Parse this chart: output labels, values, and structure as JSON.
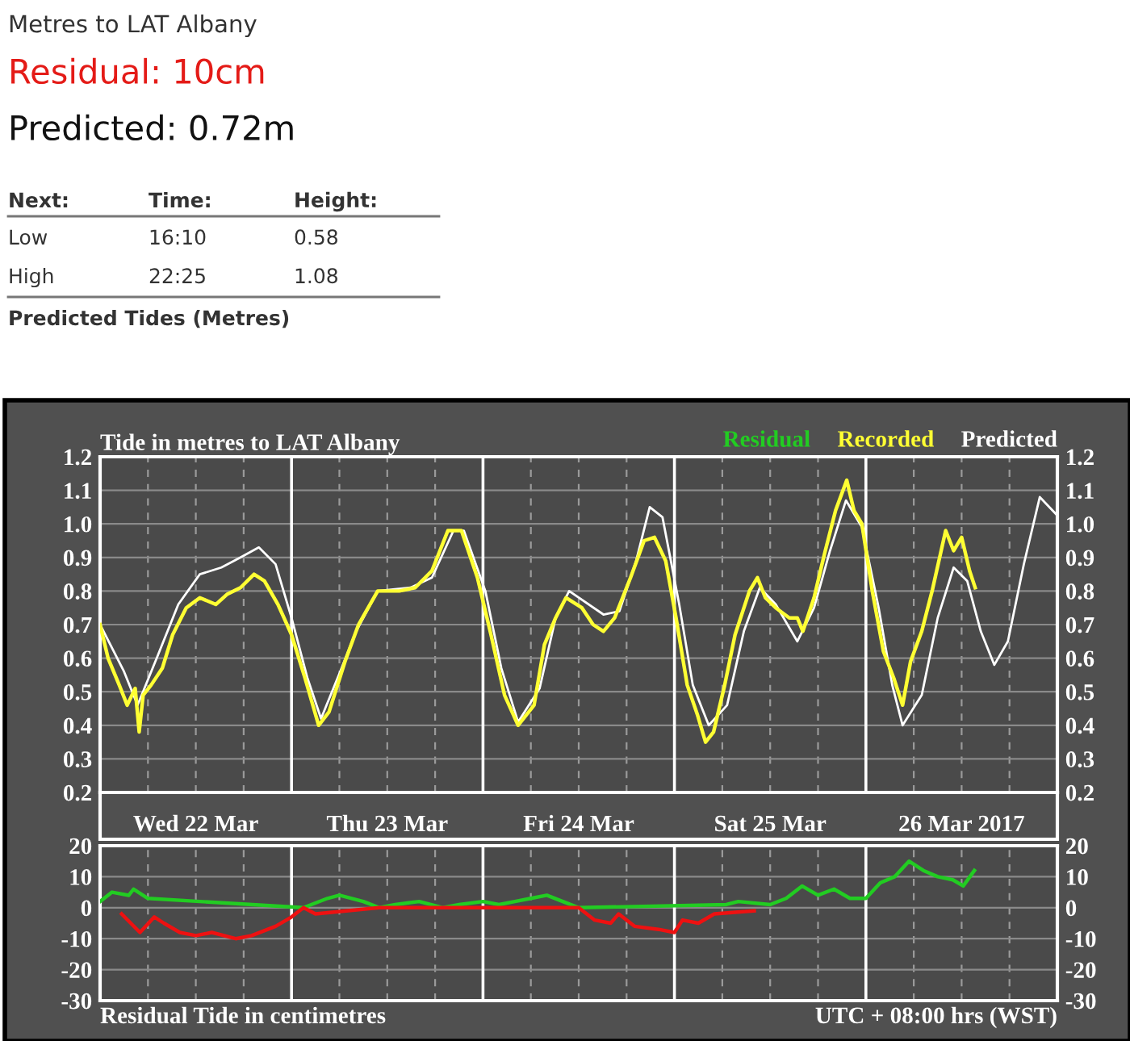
{
  "chart_data": [
    {
      "type": "other",
      "title": "Metres to LAT Albany",
      "annotations": [
        "Residual: 10cm",
        "Predicted: 0.72m",
        "Next:",
        "Time:",
        "Height:",
        "Low",
        "16:10",
        "0.58",
        "High",
        "22:25",
        "1.08",
        "Predicted Tides (Metres)"
      ]
    },
    {
      "type": "line",
      "title": "Tide in metres to LAT Albany",
      "legend": "top right",
      "grid": true,
      "xlim": [
        "2017-03-22T00:00",
        "2017-03-27T00:00"
      ],
      "ylim": [
        0.2,
        1.2
      ],
      "y2lim": [
        0.2,
        1.2
      ],
      "xticks": [
        {
          "value": "2017-03-22T06:00",
          "label": null
        },
        {
          "value": "2017-03-22T12:00",
          "label": "Wed 22 Mar"
        },
        {
          "value": "2017-03-22T18:00",
          "label": null
        },
        {
          "value": "2017-03-23T06:00",
          "label": null
        },
        {
          "value": "2017-03-23T12:00",
          "label": "Thu 23 Mar"
        },
        {
          "value": "2017-03-23T18:00",
          "label": null
        },
        {
          "value": "2017-03-24T06:00",
          "label": null
        },
        {
          "value": "2017-03-24T12:00",
          "label": "Fri 24 Mar"
        },
        {
          "value": "2017-03-24T18:00",
          "label": null
        },
        {
          "value": "2017-03-25T06:00",
          "label": null
        },
        {
          "value": "2017-03-25T12:00",
          "label": "Sat 25 Mar"
        },
        {
          "value": "2017-03-25T18:00",
          "label": null
        },
        {
          "value": "2017-03-26T06:00",
          "label": null
        },
        {
          "value": "2017-03-26T12:00",
          "label": "26 Mar 2017"
        },
        {
          "value": "2017-03-26T18:00",
          "label": null
        }
      ],
      "yticks": [
        {
          "value": 0.2,
          "label": "0.2"
        },
        {
          "value": 0.3,
          "label": "0.3"
        },
        {
          "value": 0.4,
          "label": "0.4"
        },
        {
          "value": 0.5,
          "label": "0.5"
        },
        {
          "value": 0.6,
          "label": "0.6"
        },
        {
          "value": 0.7,
          "label": "0.7"
        },
        {
          "value": 0.8,
          "label": "0.8"
        },
        {
          "value": 0.9,
          "label": "0.9"
        },
        {
          "value": 1.0,
          "label": "1.0"
        },
        {
          "value": 1.1,
          "label": "1.1"
        },
        {
          "value": 1.2,
          "label": "1.2"
        }
      ],
      "y2ticks": [
        {
          "value": 0.2,
          "label": "0.2"
        },
        {
          "value": 0.3,
          "label": "0.3"
        },
        {
          "value": 0.4,
          "label": "0.4"
        },
        {
          "value": 0.5,
          "label": "0.5"
        },
        {
          "value": 0.6,
          "label": "0.6"
        },
        {
          "value": 0.7,
          "label": "0.7"
        },
        {
          "value": 0.8,
          "label": "0.8"
        },
        {
          "value": 0.9,
          "label": "0.9"
        },
        {
          "value": 1.0,
          "label": "1.0"
        },
        {
          "value": 1.1,
          "label": "1.1"
        },
        {
          "value": 1.2,
          "label": "1.2"
        }
      ],
      "ref_lines": [
        {
          "axis": "x",
          "value": "2017-03-23T00:00",
          "color": "#ffffff"
        },
        {
          "axis": "x",
          "value": "2017-03-24T00:00",
          "color": "#ffffff"
        },
        {
          "axis": "x",
          "value": "2017-03-25T00:00",
          "color": "#ffffff"
        },
        {
          "axis": "x",
          "value": "2017-03-26T00:00",
          "color": "#ffffff"
        }
      ],
      "series": [
        {
          "name": "Predicted",
          "color": "#ffffff",
          "x": [
            "2017-03-22T00:00",
            "2017-03-22T03:00",
            "2017-03-22T04:42",
            "2017-03-22T07:06",
            "2017-03-22T09:48",
            "2017-03-22T12:30",
            "2017-03-22T15:12",
            "2017-03-22T17:36",
            "2017-03-22T19:54",
            "2017-03-22T22:00",
            "2017-03-23T00:00",
            "2017-03-23T02:00",
            "2017-03-23T03:42",
            "2017-03-23T06:06",
            "2017-03-23T08:06",
            "2017-03-23T10:48",
            "2017-03-23T14:54",
            "2017-03-23T17:36",
            "2017-03-23T20:18",
            "2017-03-23T21:36",
            "2017-03-24T00:18",
            "2017-03-24T02:18",
            "2017-03-24T04:24",
            "2017-03-24T07:06",
            "2017-03-24T09:06",
            "2017-03-24T10:48",
            "2017-03-24T15:06",
            "2017-03-24T17:06",
            "2017-03-24T19:12",
            "2017-03-24T20:54",
            "2017-03-24T22:30",
            "2017-03-25T00:36",
            "2017-03-25T02:18",
            "2017-03-25T04:18",
            "2017-03-25T06:36",
            "2017-03-25T08:42",
            "2017-03-25T10:42",
            "2017-03-25T12:42",
            "2017-03-25T15:24",
            "2017-03-25T17:30",
            "2017-03-25T19:30",
            "2017-03-25T21:30",
            "2017-03-25T23:30",
            "2017-03-26T01:36",
            "2017-03-26T03:18",
            "2017-03-26T04:36",
            "2017-03-26T07:00",
            "2017-03-26T09:00",
            "2017-03-26T11:00",
            "2017-03-26T12:42",
            "2017-03-26T14:24",
            "2017-03-26T16:06",
            "2017-03-26T17:48",
            "2017-03-26T19:48",
            "2017-03-26T21:48",
            "2017-03-26T23:48"
          ],
          "values": [
            0.7,
            0.56,
            0.46,
            0.6,
            0.76,
            0.85,
            0.87,
            0.9,
            0.93,
            0.88,
            0.72,
            0.54,
            0.42,
            0.56,
            0.68,
            0.8,
            0.81,
            0.84,
            0.98,
            0.98,
            0.8,
            0.57,
            0.41,
            0.51,
            0.72,
            0.8,
            0.73,
            0.74,
            0.89,
            1.05,
            1.02,
            0.76,
            0.52,
            0.4,
            0.46,
            0.68,
            0.81,
            0.76,
            0.65,
            0.75,
            0.92,
            1.07,
            0.99,
            0.75,
            0.52,
            0.4,
            0.49,
            0.72,
            0.87,
            0.83,
            0.68,
            0.58,
            0.65,
            0.88,
            1.08,
            1.03
          ]
        },
        {
          "name": "Recorded",
          "color": "#ffff33",
          "x": [
            "2017-03-22T00:00",
            "2017-03-22T01:00",
            "2017-03-22T02:24",
            "2017-03-22T03:24",
            "2017-03-22T04:24",
            "2017-03-22T04:54",
            "2017-03-22T05:24",
            "2017-03-22T06:24",
            "2017-03-22T07:48",
            "2017-03-22T09:06",
            "2017-03-22T10:48",
            "2017-03-22T12:30",
            "2017-03-22T14:30",
            "2017-03-22T15:54",
            "2017-03-22T17:36",
            "2017-03-22T19:18",
            "2017-03-22T20:36",
            "2017-03-22T22:18",
            "2017-03-23T00:00",
            "2017-03-23T01:42",
            "2017-03-23T03:24",
            "2017-03-23T04:42",
            "2017-03-23T06:42",
            "2017-03-23T08:24",
            "2017-03-23T10:48",
            "2017-03-23T13:30",
            "2017-03-23T15:30",
            "2017-03-23T17:36",
            "2017-03-23T19:36",
            "2017-03-23T21:18",
            "2017-03-23T23:18",
            "2017-03-24T01:00",
            "2017-03-24T02:42",
            "2017-03-24T04:24",
            "2017-03-24T06:24",
            "2017-03-24T07:42",
            "2017-03-24T09:06",
            "2017-03-24T10:24",
            "2017-03-24T12:24",
            "2017-03-24T13:48",
            "2017-03-24T15:06",
            "2017-03-24T16:30",
            "2017-03-24T18:30",
            "2017-03-24T20:12",
            "2017-03-24T21:30",
            "2017-03-24T22:54",
            "2017-03-25T00:12",
            "2017-03-25T01:36",
            "2017-03-25T02:54",
            "2017-03-25T03:54",
            "2017-03-25T04:54",
            "2017-03-25T06:18",
            "2017-03-25T07:36",
            "2017-03-25T09:24",
            "2017-03-25T10:24",
            "2017-03-25T11:24",
            "2017-03-25T12:42",
            "2017-03-25T14:24",
            "2017-03-25T15:24",
            "2017-03-25T16:06",
            "2017-03-25T17:30",
            "2017-03-25T18:48",
            "2017-03-25T20:12",
            "2017-03-25T21:36",
            "2017-03-25T22:30",
            "2017-03-25T23:30",
            "2017-03-26T00:48",
            "2017-03-26T02:12",
            "2017-03-26T03:30",
            "2017-03-26T04:36",
            "2017-03-26T05:36",
            "2017-03-26T07:00",
            "2017-03-26T08:18",
            "2017-03-26T10:00",
            "2017-03-26T11:00",
            "2017-03-26T12:00",
            "2017-03-26T13:00",
            "2017-03-26T13:42"
          ],
          "values": [
            0.7,
            0.6,
            0.52,
            0.46,
            0.51,
            0.38,
            0.49,
            0.52,
            0.57,
            0.67,
            0.75,
            0.78,
            0.76,
            0.79,
            0.81,
            0.85,
            0.83,
            0.76,
            0.67,
            0.54,
            0.4,
            0.44,
            0.59,
            0.7,
            0.8,
            0.8,
            0.81,
            0.86,
            0.98,
            0.98,
            0.84,
            0.67,
            0.49,
            0.4,
            0.46,
            0.64,
            0.72,
            0.78,
            0.75,
            0.7,
            0.68,
            0.72,
            0.84,
            0.95,
            0.96,
            0.89,
            0.72,
            0.52,
            0.43,
            0.35,
            0.38,
            0.52,
            0.67,
            0.8,
            0.84,
            0.78,
            0.75,
            0.72,
            0.72,
            0.68,
            0.78,
            0.91,
            1.04,
            1.13,
            1.04,
            1.0,
            0.8,
            0.62,
            0.54,
            0.46,
            0.59,
            0.68,
            0.8,
            0.98,
            0.92,
            0.96,
            0.86,
            0.81
          ]
        }
      ]
    },
    {
      "type": "line",
      "xlabel": "Residual Tide in centimetres",
      "annotations": [
        "UTC + 08:00 hrs (WST)"
      ],
      "grid": true,
      "tick_labels": "y",
      "xlim": [
        "2017-03-22T00:00",
        "2017-03-27T00:00"
      ],
      "ylim": [
        -30,
        20
      ],
      "y2lim": [
        -30,
        20
      ],
      "xticks": [
        {
          "value": "2017-03-22T06:00",
          "label": null
        },
        {
          "value": "2017-03-22T12:00",
          "label": null
        },
        {
          "value": "2017-03-22T18:00",
          "label": null
        },
        {
          "value": "2017-03-23T06:00",
          "label": null
        },
        {
          "value": "2017-03-23T12:00",
          "label": null
        },
        {
          "value": "2017-03-23T18:00",
          "label": null
        },
        {
          "value": "2017-03-24T06:00",
          "label": null
        },
        {
          "value": "2017-03-24T12:00",
          "label": null
        },
        {
          "value": "2017-03-24T18:00",
          "label": null
        },
        {
          "value": "2017-03-25T06:00",
          "label": null
        },
        {
          "value": "2017-03-25T12:00",
          "label": null
        },
        {
          "value": "2017-03-25T18:00",
          "label": null
        },
        {
          "value": "2017-03-26T06:00",
          "label": null
        },
        {
          "value": "2017-03-26T12:00",
          "label": null
        },
        {
          "value": "2017-03-26T18:00",
          "label": null
        }
      ],
      "yticks": [
        -30,
        -20,
        -10,
        0,
        10,
        20
      ],
      "y2ticks": [
        -30,
        -20,
        -10,
        0,
        10,
        20
      ],
      "ref_lines": [
        {
          "axis": "x",
          "value": "2017-03-23T00:00",
          "color": "#ffffff"
        },
        {
          "axis": "x",
          "value": "2017-03-24T00:00",
          "color": "#ffffff"
        },
        {
          "axis": "x",
          "value": "2017-03-25T00:00",
          "color": "#ffffff"
        },
        {
          "axis": "x",
          "value": "2017-03-26T00:00",
          "color": "#ffffff"
        }
      ],
      "series": [
        {
          "name": "Residual",
          "color": "#22cc22",
          "x": [
            "2017-03-22T00:00",
            "2017-03-22T01:30",
            "2017-03-22T03:36",
            "2017-03-22T04:12",
            "2017-03-22T06:00",
            "2017-03-23T01:30",
            "2017-03-23T04:30",
            "2017-03-23T06:00",
            "2017-03-23T09:00",
            "2017-03-23T11:00",
            "2017-03-23T13:00",
            "2017-03-23T16:00",
            "2017-03-23T19:00",
            "2017-03-23T21:00",
            "2017-03-24T00:00",
            "2017-03-24T02:00",
            "2017-03-24T04:00",
            "2017-03-24T06:00",
            "2017-03-24T08:00",
            "2017-03-24T10:00",
            "2017-03-24T12:00",
            "2017-03-25T06:30",
            "2017-03-25T08:00",
            "2017-03-25T12:00",
            "2017-03-25T14:00",
            "2017-03-25T16:00",
            "2017-03-25T18:00",
            "2017-03-25T20:00",
            "2017-03-25T22:00",
            "2017-03-26T00:00",
            "2017-03-26T01:48",
            "2017-03-26T03:36",
            "2017-03-26T05:24",
            "2017-03-26T07:12",
            "2017-03-26T09:00",
            "2017-03-26T10:54",
            "2017-03-26T12:12",
            "2017-03-26T13:36"
          ],
          "values": [
            2,
            5,
            4,
            6,
            3,
            0,
            3,
            4,
            2,
            0,
            1,
            2,
            0,
            1,
            2,
            1,
            2,
            3,
            4,
            2,
            0,
            1,
            2,
            1,
            3,
            7,
            4,
            6,
            3,
            3,
            8,
            10,
            15,
            12,
            10,
            9,
            7,
            12
          ]
        },
        {
          "color": "#ee1111",
          "x": [
            "2017-03-22T02:42",
            "2017-03-22T05:00",
            "2017-03-22T06:48",
            "2017-03-22T08:00",
            "2017-03-22T10:00",
            "2017-03-22T12:00",
            "2017-03-22T14:00",
            "2017-03-22T17:00",
            "2017-03-22T19:00",
            "2017-03-22T22:00",
            "2017-03-23T00:00",
            "2017-03-23T01:30",
            "2017-03-23T03:00",
            "2017-03-23T11:00",
            "2017-03-23T19:00",
            "2017-03-24T12:00",
            "2017-03-24T14:00",
            "2017-03-24T16:00",
            "2017-03-24T17:00",
            "2017-03-24T19:00",
            "2017-03-24T22:00",
            "2017-03-25T00:00",
            "2017-03-25T01:00",
            "2017-03-25T03:00",
            "2017-03-25T05:00",
            "2017-03-25T10:00"
          ],
          "values": [
            -2,
            -8,
            -3,
            -5,
            -8,
            -9,
            -8,
            -10,
            -9,
            -6,
            -3,
            0,
            -2,
            0,
            0,
            0,
            -4,
            -5,
            -2,
            -6,
            -7,
            -8,
            -4,
            -5,
            -2,
            -1
          ]
        }
      ]
    }
  ]
}
